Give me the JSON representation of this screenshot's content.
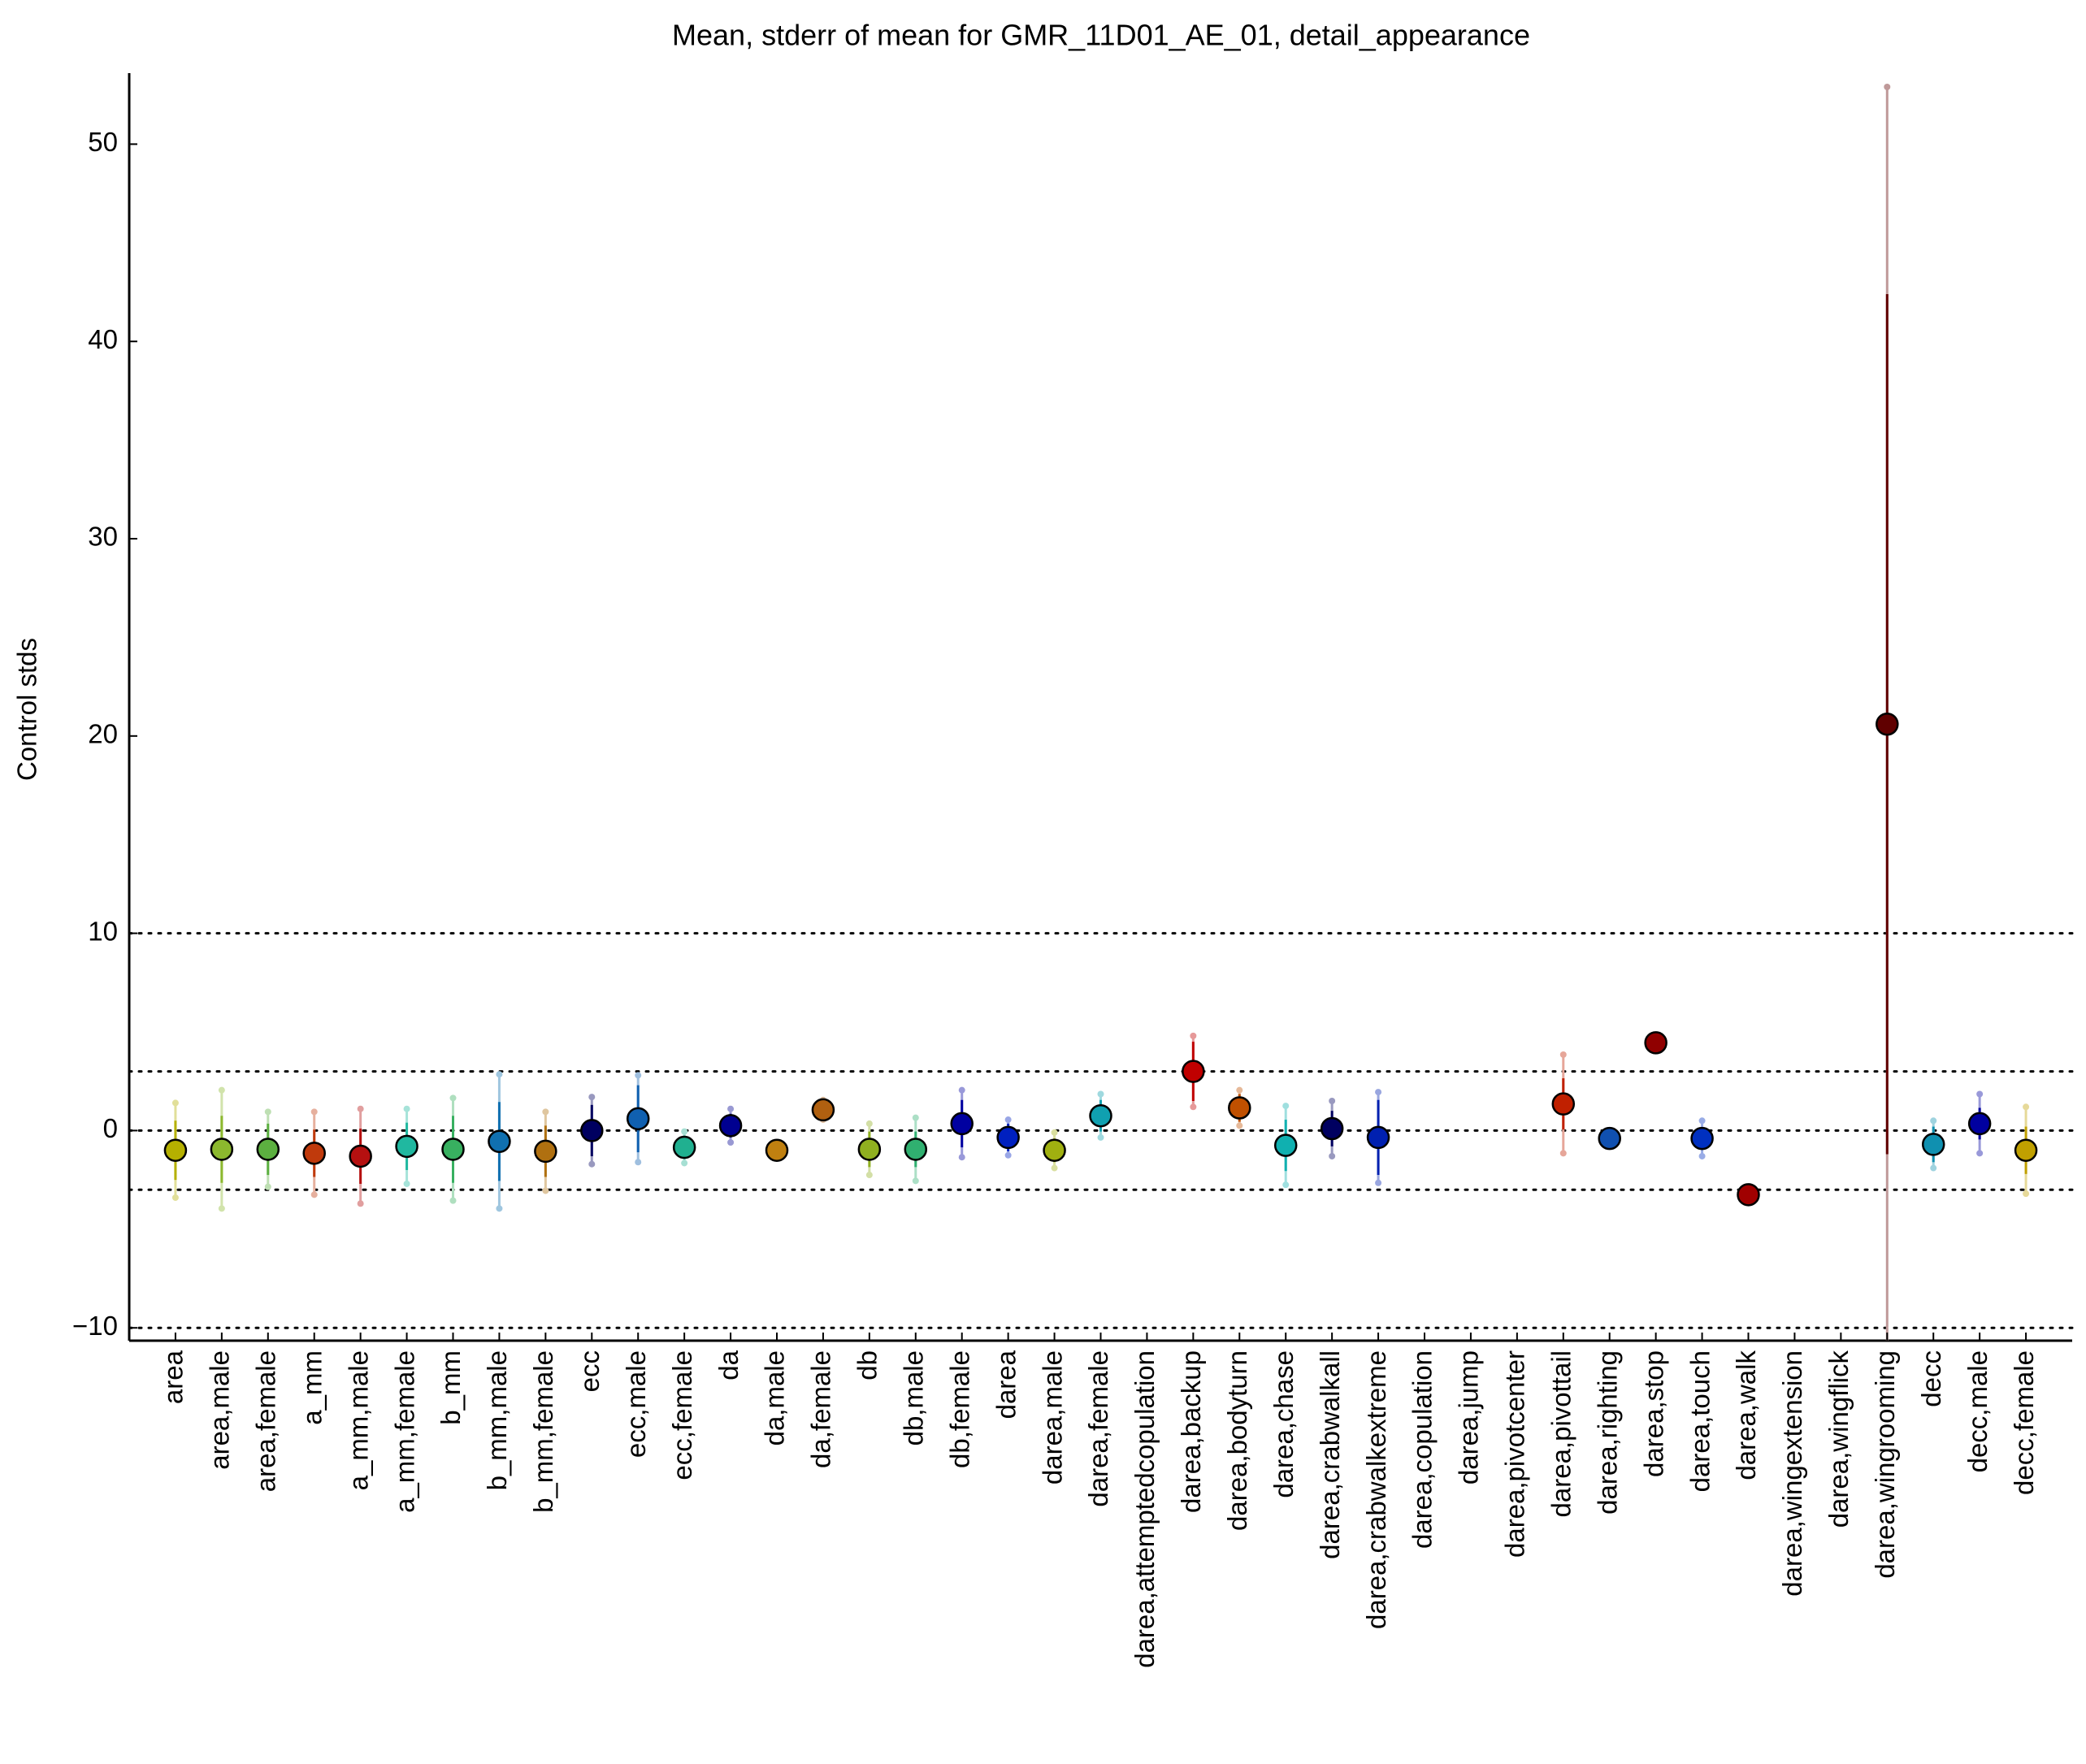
{
  "chart_data": {
    "type": "errorbar",
    "title": "Mean, stderr of mean for GMR_11D01_AE_01, detail_appearance",
    "ylabel": "Control stds",
    "categories": [
      "area",
      "area,male",
      "area,female",
      "a_mm",
      "a_mm,male",
      "a_mm,female",
      "b_mm",
      "b_mm,male",
      "b_mm,female",
      "ecc",
      "ecc,male",
      "ecc,female",
      "da",
      "da,male",
      "da,female",
      "db",
      "db,male",
      "db,female",
      "darea",
      "darea,male",
      "darea,female",
      "darea,attemptedcopulation",
      "darea,backup",
      "darea,bodyturn",
      "darea,chase",
      "darea,crabwalkall",
      "darea,crabwalkextreme",
      "darea,copulation",
      "darea,jump",
      "darea,pivotcenter",
      "darea,pivottail",
      "darea,righting",
      "darea,stop",
      "darea,touch",
      "darea,walk",
      "darea,wingextension",
      "darea,wingflick",
      "darea,wingrooming",
      "decc",
      "decc,male",
      "decc,female"
    ],
    "colors": [
      "#b5b000",
      "#8cb82e",
      "#5cb040",
      "#c03a0c",
      "#b51010",
      "#20b8a0",
      "#38b060",
      "#1070b0",
      "#b07010",
      "#000060",
      "#1060b0",
      "#20b090",
      "#000090",
      "#c08010",
      "#b06010",
      "#90b020",
      "#30b070",
      "#0000a0",
      "#0020c0",
      "#a0b010",
      "#10a0b0",
      "#909090",
      "#c00000",
      "#c05000",
      "#10b0b0",
      "#000060",
      "#0020b0",
      "#909090",
      "#909090",
      "#909090",
      "#c02000",
      "#1050b0",
      "#900000",
      "#0030c0",
      "#a00000",
      "#909090",
      "#909090",
      "#600000",
      "#1090b0",
      "#0000a0",
      "#c0a000"
    ],
    "values": [
      -1.0,
      -0.95,
      -0.95,
      -1.15,
      -1.3,
      -0.8,
      -0.95,
      -0.55,
      -1.05,
      0.0,
      0.6,
      -0.85,
      0.25,
      -1.0,
      1.05,
      -0.95,
      -0.95,
      0.35,
      -0.35,
      -1.0,
      0.75,
      null,
      3.0,
      1.15,
      -0.75,
      0.1,
      -0.35,
      null,
      null,
      null,
      1.35,
      -0.4,
      4.45,
      -0.4,
      -3.25,
      null,
      null,
      20.6,
      -0.7,
      0.35,
      -1.0
    ],
    "errors": [
      1.5,
      1.7,
      1.3,
      1.2,
      1.4,
      1.2,
      1.7,
      2.0,
      1.3,
      1.3,
      1.7,
      0.6,
      0.6,
      0.2,
      0.3,
      0.9,
      0.9,
      1.2,
      0.7,
      0.6,
      0.8,
      null,
      1.5,
      0.7,
      1.3,
      0.9,
      1.9,
      null,
      null,
      null,
      1.3,
      0.1,
      0.1,
      0.5,
      0.1,
      null,
      null,
      21.8,
      0.9,
      0.8,
      1.2
    ],
    "std": [
      2.4,
      3.0,
      1.9,
      2.1,
      2.4,
      1.9,
      2.6,
      3.4,
      2.0,
      1.7,
      2.2,
      0.8,
      0.85,
      0.3,
      0.5,
      1.3,
      1.6,
      1.7,
      0.9,
      0.9,
      1.1,
      null,
      1.8,
      0.9,
      2.0,
      1.4,
      2.3,
      null,
      null,
      null,
      2.5,
      0.1,
      0.1,
      0.9,
      0.1,
      null,
      null,
      32.3,
      1.2,
      1.5,
      2.2
    ],
    "ylim": [
      -10.65,
      53.6
    ],
    "yticks": [
      {
        "value": -10,
        "label": "−10"
      },
      0,
      10,
      20,
      30,
      40,
      50
    ],
    "reference_lines": [
      -10,
      -3,
      0,
      3,
      10
    ]
  }
}
